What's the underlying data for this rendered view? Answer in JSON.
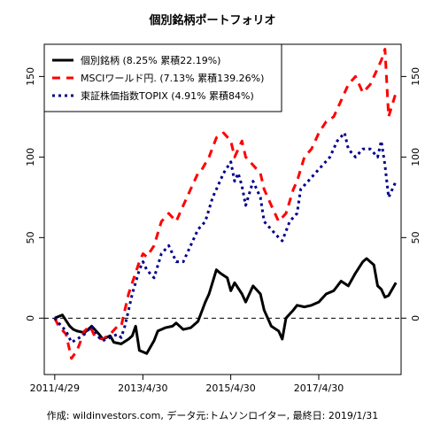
{
  "chart_data": {
    "type": "line",
    "title": "個別銘柄ポートフォリオ",
    "xlabel": "",
    "ylabel": "",
    "ylim": [
      -35,
      170
    ],
    "x_tick_labels": [
      "2011/4/29",
      "2013/4/30",
      "2015/4/30",
      "2017/4/30"
    ],
    "x_tick_dates": [
      "2011-04-29",
      "2013-04-30",
      "2015-04-30",
      "2017-04-30"
    ],
    "xlim": [
      "2011-02-01",
      "2019-03-15"
    ],
    "y_ticks": [
      0,
      50,
      100,
      150
    ],
    "y_tick_labels": [
      "0",
      "50",
      "100",
      "150"
    ],
    "reference_line": 0,
    "grid": false,
    "legend_position": "top-left",
    "series": [
      {
        "name": "個別銘柄 (8.25% 累積22.19%)",
        "color": "#000000",
        "style": "solid",
        "x": [
          "2011-04-29",
          "2011-07-01",
          "2011-09-01",
          "2011-10-01",
          "2011-11-01",
          "2012-01-01",
          "2012-03-01",
          "2012-05-01",
          "2012-06-01",
          "2012-08-01",
          "2012-09-01",
          "2012-11-01",
          "2013-01-01",
          "2013-02-01",
          "2013-03-01",
          "2013-04-01",
          "2013-06-01",
          "2013-08-01",
          "2013-09-01",
          "2013-11-01",
          "2014-01-01",
          "2014-02-01",
          "2014-04-01",
          "2014-06-01",
          "2014-08-01",
          "2014-10-01",
          "2014-11-01",
          "2015-01-01",
          "2015-02-01",
          "2015-04-01",
          "2015-05-01",
          "2015-06-01",
          "2015-08-01",
          "2015-09-01",
          "2015-11-01",
          "2016-01-01",
          "2016-02-01",
          "2016-04-01",
          "2016-06-01",
          "2016-07-01",
          "2016-08-01",
          "2016-10-01",
          "2016-11-01",
          "2017-01-01",
          "2017-03-01",
          "2017-05-01",
          "2017-07-01",
          "2017-09-01",
          "2017-11-01",
          "2018-01-01",
          "2018-03-01",
          "2018-05-01",
          "2018-06-01",
          "2018-08-01",
          "2018-09-01",
          "2018-10-01",
          "2018-11-01",
          "2018-12-01",
          "2019-01-31"
        ],
        "values": [
          0,
          2,
          -5,
          -7,
          -8,
          -9,
          -5,
          -10,
          -13,
          -11,
          -15,
          -16,
          -13,
          -11,
          -5,
          -20,
          -22,
          -14,
          -8,
          -6,
          -5,
          -3,
          -7,
          -6,
          -2,
          10,
          15,
          30,
          28,
          25,
          17,
          22,
          15,
          10,
          20,
          15,
          5,
          -5,
          -8,
          -13,
          0,
          5,
          8,
          7,
          8,
          10,
          15,
          17,
          23,
          20,
          28,
          35,
          37,
          33,
          20,
          18,
          13,
          14,
          22
        ]
      },
      {
        "name": "MSCIワールド円. (7.13% 累積139.26%)",
        "color": "#ff0000",
        "style": "dashed",
        "x": [
          "2011-04-29",
          "2011-06-01",
          "2011-08-01",
          "2011-09-15",
          "2011-11-01",
          "2012-01-01",
          "2012-02-15",
          "2012-04-01",
          "2012-06-01",
          "2012-08-01",
          "2012-10-01",
          "2012-11-01",
          "2012-12-01",
          "2013-01-01",
          "2013-02-01",
          "2013-04-01",
          "2013-05-01",
          "2013-06-01",
          "2013-08-01",
          "2013-10-01",
          "2013-12-01",
          "2014-02-01",
          "2014-04-01",
          "2014-06-01",
          "2014-08-01",
          "2014-09-01",
          "2014-11-01",
          "2015-01-01",
          "2015-03-01",
          "2015-05-01",
          "2015-06-01",
          "2015-08-01",
          "2015-09-01",
          "2015-11-01",
          "2016-01-01",
          "2016-02-01",
          "2016-04-01",
          "2016-06-01",
          "2016-08-01",
          "2016-10-01",
          "2016-11-01",
          "2017-01-01",
          "2017-03-01",
          "2017-05-01",
          "2017-07-01",
          "2017-09-01",
          "2017-11-01",
          "2018-01-01",
          "2018-03-01",
          "2018-05-01",
          "2018-07-01",
          "2018-09-01",
          "2018-10-01",
          "2018-11-01",
          "2018-12-01",
          "2019-01-31"
        ],
        "values": [
          0,
          -5,
          -10,
          -25,
          -20,
          -8,
          -5,
          -12,
          -13,
          -10,
          -5,
          -5,
          5,
          15,
          22,
          35,
          40,
          38,
          45,
          60,
          65,
          60,
          70,
          80,
          90,
          92,
          100,
          112,
          115,
          110,
          100,
          110,
          100,
          95,
          90,
          80,
          70,
          60,
          65,
          80,
          85,
          100,
          105,
          115,
          122,
          125,
          135,
          145,
          150,
          140,
          145,
          155,
          160,
          167,
          125,
          140
        ]
      },
      {
        "name": "東証株価指数TOPIX (4.91% 累積84%)",
        "color": "#00008b",
        "style": "dotted",
        "x": [
          "2011-04-29",
          "2011-06-01",
          "2011-08-01",
          "2011-09-15",
          "2011-11-01",
          "2012-01-01",
          "2012-03-01",
          "2012-05-01",
          "2012-06-01",
          "2012-08-01",
          "2012-10-01",
          "2012-11-01",
          "2012-12-01",
          "2013-01-01",
          "2013-02-01",
          "2013-04-01",
          "2013-05-01",
          "2013-06-01",
          "2013-08-01",
          "2013-10-01",
          "2013-12-01",
          "2014-02-01",
          "2014-04-01",
          "2014-06-01",
          "2014-08-01",
          "2014-10-01",
          "2014-12-01",
          "2015-01-01",
          "2015-03-01",
          "2015-05-01",
          "2015-06-01",
          "2015-07-01",
          "2015-08-01",
          "2015-09-01",
          "2015-11-01",
          "2016-01-01",
          "2016-02-01",
          "2016-04-01",
          "2016-06-01",
          "2016-07-01",
          "2016-09-01",
          "2016-11-01",
          "2016-12-01",
          "2017-02-01",
          "2017-04-01",
          "2017-06-01",
          "2017-08-01",
          "2017-10-01",
          "2017-12-01",
          "2018-01-01",
          "2018-03-01",
          "2018-05-01",
          "2018-07-01",
          "2018-09-01",
          "2018-10-01",
          "2018-11-01",
          "2018-12-01",
          "2019-01-31"
        ],
        "values": [
          0,
          -3,
          -8,
          -15,
          -13,
          -10,
          -5,
          -12,
          -14,
          -12,
          -10,
          -12,
          -5,
          5,
          15,
          30,
          35,
          30,
          25,
          40,
          45,
          35,
          35,
          45,
          55,
          60,
          75,
          80,
          90,
          97,
          85,
          90,
          82,
          70,
          85,
          75,
          60,
          55,
          50,
          48,
          60,
          65,
          80,
          85,
          90,
          95,
          100,
          110,
          115,
          105,
          100,
          105,
          105,
          100,
          110,
          95,
          75,
          85
        ]
      }
    ],
    "source": "作成: wildinvestors.com, データ元:トムソンロイター, 最終日: 2019/1/31"
  }
}
